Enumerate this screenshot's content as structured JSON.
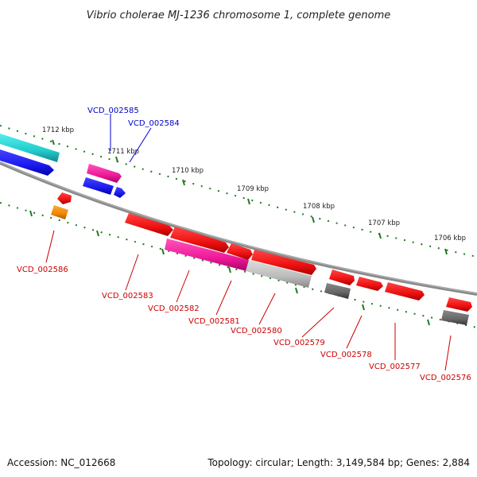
{
  "title": "Vibrio cholerae MJ-1236 chromosome 1, complete genome",
  "accession": "Accession: NC_012668",
  "summary": "Topology: circular; Length: 3,149,584 bp; Genes: 2,884",
  "ticks": [
    "1712 kbp",
    "1711 kbp",
    "1710 kbp",
    "1709 kbp",
    "1708 kbp",
    "1707 kbp",
    "1706 kbp"
  ],
  "genes": [
    {
      "id": "VCD_002585",
      "color": "#0000cc"
    },
    {
      "id": "VCD_002584",
      "color": "#0000cc"
    },
    {
      "id": "VCD_002586",
      "color": "#cc0000"
    },
    {
      "id": "VCD_002583",
      "color": "#cc0000"
    },
    {
      "id": "VCD_002582",
      "color": "#cc0000"
    },
    {
      "id": "VCD_002581",
      "color": "#cc0000"
    },
    {
      "id": "VCD_002580",
      "color": "#cc0000"
    },
    {
      "id": "VCD_002579",
      "color": "#cc0000"
    },
    {
      "id": "VCD_002578",
      "color": "#cc0000"
    },
    {
      "id": "VCD_002577",
      "color": "#cc0000"
    },
    {
      "id": "VCD_002576",
      "color": "#cc0000"
    }
  ],
  "colors": {
    "backbone": "#7f7f7f",
    "tick": "#1f7a1f",
    "cyan": "#22cccc",
    "blue": "#1a1aee",
    "magenta": "#ee1a99",
    "red": "#ee1111",
    "orange": "#ee8800",
    "gray": "#666666",
    "lightgray": "#bbbbbb"
  }
}
